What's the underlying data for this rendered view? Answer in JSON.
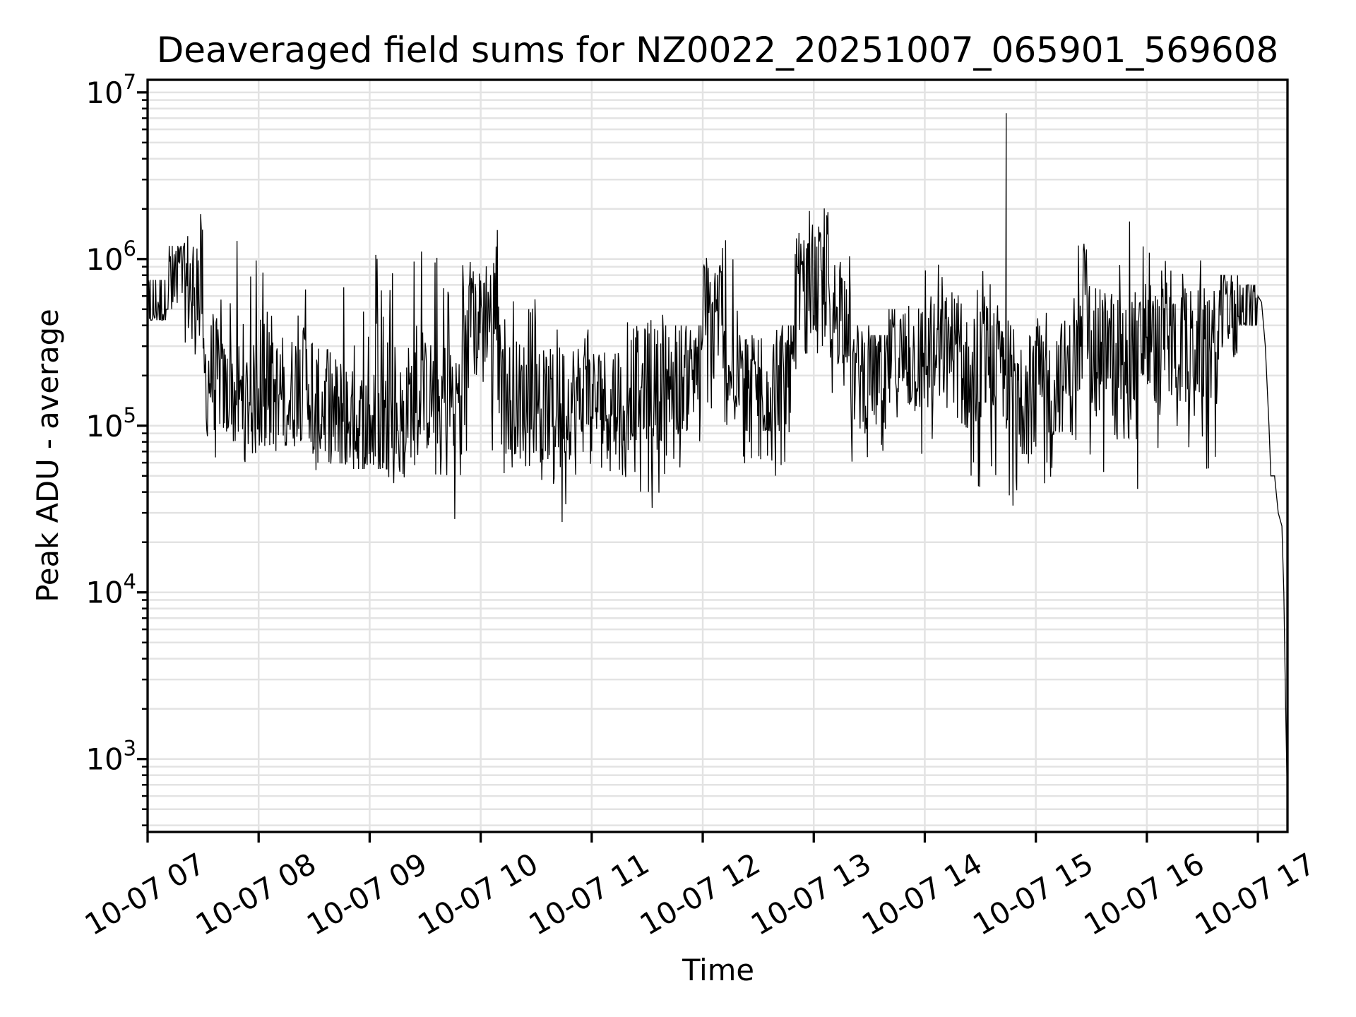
{
  "chart_data": {
    "type": "line",
    "title": "Deaveraged field sums for NZ0022_20251007_065901_569608",
    "xlabel": "Time",
    "ylabel": "Peak ADU - average",
    "yscale": "log",
    "ylim": [
      365,
      11900000
    ],
    "xlim_minutes_after_0700": [
      0,
      616
    ],
    "grid": "major and minor, light gray",
    "line_color": "#000000",
    "x_tick_minutes": [
      0,
      60,
      120,
      180,
      240,
      300,
      360,
      420,
      480,
      540,
      600
    ],
    "x_tick_labels": [
      "10-07 07",
      "10-07 08",
      "10-07 09",
      "10-07 10",
      "10-07 11",
      "10-07 12",
      "10-07 13",
      "10-07 14",
      "10-07 15",
      "10-07 16",
      "10-07 17"
    ],
    "y_ticks": [
      {
        "value": 1000,
        "base": "10",
        "exp": "3"
      },
      {
        "value": 10000,
        "base": "10",
        "exp": "4"
      },
      {
        "value": 100000,
        "base": "10",
        "exp": "5"
      },
      {
        "value": 1000000,
        "base": "10",
        "exp": "6"
      },
      {
        "value": 10000000,
        "base": "10",
        "exp": "7"
      }
    ],
    "bins_note": "10-minute bins: [start_minute_after_0700, typical, low, high]",
    "bins": [
      [
        0,
        550000,
        430000,
        750000
      ],
      [
        10,
        700000,
        500000,
        1200000
      ],
      [
        20,
        700000,
        250000,
        2000000
      ],
      [
        30,
        200000,
        60000,
        750000
      ],
      [
        40,
        150000,
        60000,
        1300000
      ],
      [
        50,
        140000,
        60000,
        1200000
      ],
      [
        60,
        150000,
        65000,
        1200000
      ],
      [
        70,
        160000,
        70000,
        900000
      ],
      [
        80,
        180000,
        60000,
        800000
      ],
      [
        90,
        130000,
        50000,
        500000
      ],
      [
        100,
        120000,
        50000,
        1350000
      ],
      [
        110,
        100000,
        55000,
        1000000
      ],
      [
        120,
        100000,
        55000,
        1200000
      ],
      [
        130,
        110000,
        40000,
        1200000
      ],
      [
        140,
        140000,
        50000,
        1300000
      ],
      [
        150,
        150000,
        50000,
        1300000
      ],
      [
        160,
        150000,
        26000,
        1000000
      ],
      [
        170,
        400000,
        60000,
        1000000
      ],
      [
        180,
        500000,
        60000,
        2300000
      ],
      [
        190,
        150000,
        40000,
        600000
      ],
      [
        200,
        150000,
        40000,
        600000
      ],
      [
        210,
        130000,
        30000,
        550000
      ],
      [
        220,
        140000,
        22000,
        500000
      ],
      [
        230,
        150000,
        40000,
        600000
      ],
      [
        240,
        140000,
        28000,
        550000
      ],
      [
        250,
        150000,
        45000,
        500000
      ],
      [
        260,
        180000,
        40000,
        450000
      ],
      [
        270,
        180000,
        25000,
        500000
      ],
      [
        280,
        200000,
        50000,
        400000
      ],
      [
        290,
        200000,
        42000,
        400000
      ],
      [
        300,
        500000,
        100000,
        1900000
      ],
      [
        310,
        220000,
        100000,
        1500000
      ],
      [
        320,
        180000,
        55000,
        350000
      ],
      [
        330,
        180000,
        45000,
        400000
      ],
      [
        340,
        200000,
        45000,
        400000
      ],
      [
        350,
        600000,
        150000,
        2000000
      ],
      [
        360,
        700000,
        250000,
        2200000
      ],
      [
        370,
        500000,
        150000,
        1300000
      ],
      [
        380,
        200000,
        60000,
        400000
      ],
      [
        390,
        200000,
        70000,
        350000
      ],
      [
        400,
        250000,
        60000,
        500000
      ],
      [
        410,
        250000,
        60000,
        600000
      ],
      [
        420,
        250000,
        60000,
        1000000
      ],
      [
        430,
        300000,
        100000,
        700000
      ],
      [
        440,
        200000,
        40000,
        800000
      ],
      [
        450,
        250000,
        50000,
        1200000
      ],
      [
        460,
        200000,
        24000,
        500000
      ],
      [
        470,
        150000,
        40000,
        400000
      ],
      [
        480,
        180000,
        45000,
        600000
      ],
      [
        490,
        200000,
        40000,
        500000
      ],
      [
        500,
        300000,
        60000,
        1300000
      ],
      [
        510,
        300000,
        50000,
        1000000
      ],
      [
        520,
        300000,
        80000,
        1300000
      ],
      [
        530,
        300000,
        40000,
        1800000
      ],
      [
        540,
        300000,
        70000,
        1200000
      ],
      [
        550,
        300000,
        80000,
        1300000
      ],
      [
        560,
        300000,
        60000,
        1000000
      ],
      [
        570,
        300000,
        40000,
        900000
      ],
      [
        580,
        500000,
        250000,
        800000
      ],
      [
        590,
        550000,
        400000,
        700000
      ]
    ],
    "spikes": [
      [
        464,
        7500000
      ]
    ],
    "tail": [
      [
        600,
        600000
      ],
      [
        602,
        550000
      ],
      [
        604,
        300000
      ],
      [
        606,
        100000
      ],
      [
        607,
        50000
      ],
      [
        609,
        50000
      ],
      [
        611,
        30000
      ],
      [
        613,
        25000
      ],
      [
        614,
        10000
      ],
      [
        615,
        2000
      ],
      [
        616,
        500
      ]
    ]
  }
}
